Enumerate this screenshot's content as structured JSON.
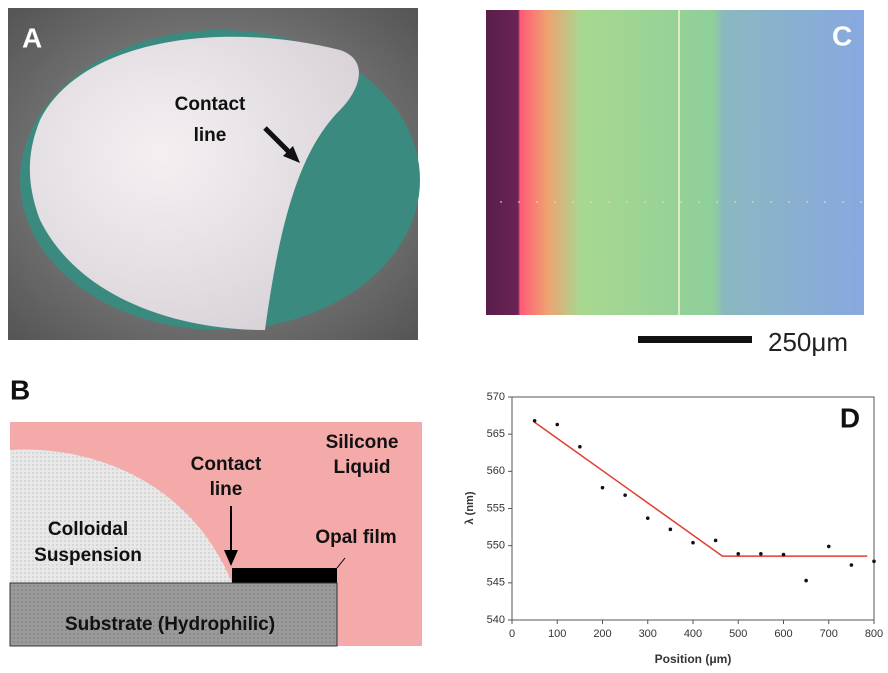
{
  "figure": {
    "a": {
      "label": "A",
      "annotation": [
        "Contact",
        "line"
      ]
    },
    "b": {
      "label": "B",
      "liquid": [
        "Silicone",
        "Liquid"
      ],
      "contact": [
        "Contact",
        "line"
      ],
      "suspension": [
        "Colloidal",
        "Suspension"
      ],
      "film": "Opal film",
      "substrate": "Substrate (Hydrophilic)"
    },
    "c": {
      "label": "C",
      "scale_bar": "250μm"
    }
  },
  "chart_data": {
    "type": "scatter",
    "label": "D",
    "x_label": "Position (μm)",
    "y_label": "λ (nm)",
    "x": [
      50,
      100,
      150,
      200,
      250,
      300,
      350,
      400,
      450,
      500,
      550,
      600,
      650,
      700,
      750,
      800
    ],
    "values": [
      566.8,
      566.3,
      563.3,
      557.8,
      556.8,
      553.7,
      552.2,
      550.4,
      550.7,
      548.9,
      548.9,
      548.8,
      545.3,
      549.9,
      547.4,
      547.9
    ],
    "color": "#111111",
    "fit": {
      "x": [
        50,
        465,
        785
      ],
      "values": [
        566.6,
        548.6,
        548.6
      ],
      "color": "#e03c31"
    },
    "xlim": [
      0,
      800
    ],
    "xticks": [
      0,
      100,
      200,
      300,
      400,
      500,
      600,
      700,
      800
    ],
    "ylim": [
      540,
      570
    ],
    "yticks": [
      540,
      545,
      550,
      555,
      560,
      565,
      570
    ]
  }
}
